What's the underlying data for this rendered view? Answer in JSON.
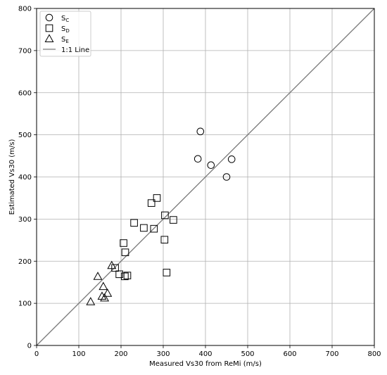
{
  "chart_data": {
    "type": "scatter",
    "title": "",
    "xlabel": "Measured Vs30 from ReMi (m/s)",
    "ylabel": "Estimated Vs30 (m/s)",
    "xlim": [
      0,
      800
    ],
    "ylim": [
      0,
      800
    ],
    "xticks": [
      0,
      100,
      200,
      300,
      400,
      500,
      600,
      700,
      800
    ],
    "yticks": [
      0,
      100,
      200,
      300,
      400,
      500,
      600,
      700,
      800
    ],
    "grid": true,
    "legend_position": "top-left",
    "colors": {
      "marker_edge": "#000000",
      "line": "#7a7a7a",
      "grid": "#b0b0b0"
    },
    "series": [
      {
        "name": "S_C",
        "label_main": "S",
        "label_sub": "C",
        "marker": "circle",
        "x": [
          388,
          382,
          413,
          462,
          450
        ],
        "y": [
          508,
          443,
          428,
          442,
          400
        ]
      },
      {
        "name": "S_D",
        "label_main": "S",
        "label_sub": "D",
        "marker": "square",
        "x": [
          285,
          272,
          304,
          324,
          231,
          254,
          278,
          303,
          206,
          210,
          186,
          196,
          209,
          215,
          308
        ],
        "y": [
          350,
          338,
          309,
          298,
          291,
          279,
          277,
          251,
          243,
          221,
          184,
          169,
          164,
          166,
          173
        ]
      },
      {
        "name": "S_E",
        "label_main": "S",
        "label_sub": "E",
        "marker": "triangle",
        "x": [
          178,
          145,
          158,
          168,
          155,
          161,
          128
        ],
        "y": [
          190,
          164,
          140,
          124,
          117,
          113,
          104
        ]
      }
    ],
    "reference_line": {
      "name": "1:1 Line",
      "x": [
        0,
        800
      ],
      "y": [
        0,
        800
      ]
    }
  }
}
